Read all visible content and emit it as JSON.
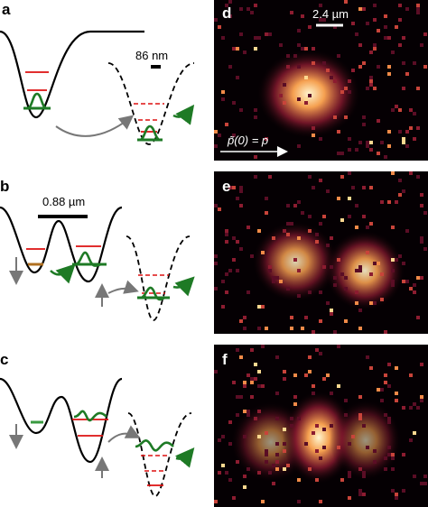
{
  "panels": [
    {
      "label": "a",
      "scale_label": "86 nm"
    },
    {
      "label": "b",
      "scale_label": "0.88 µm"
    },
    {
      "label": "c"
    },
    {
      "label": "d",
      "scale_label": "2.4 µm",
      "annotation": "p̃(0) = p"
    },
    {
      "label": "e"
    },
    {
      "label": "f"
    }
  ]
}
